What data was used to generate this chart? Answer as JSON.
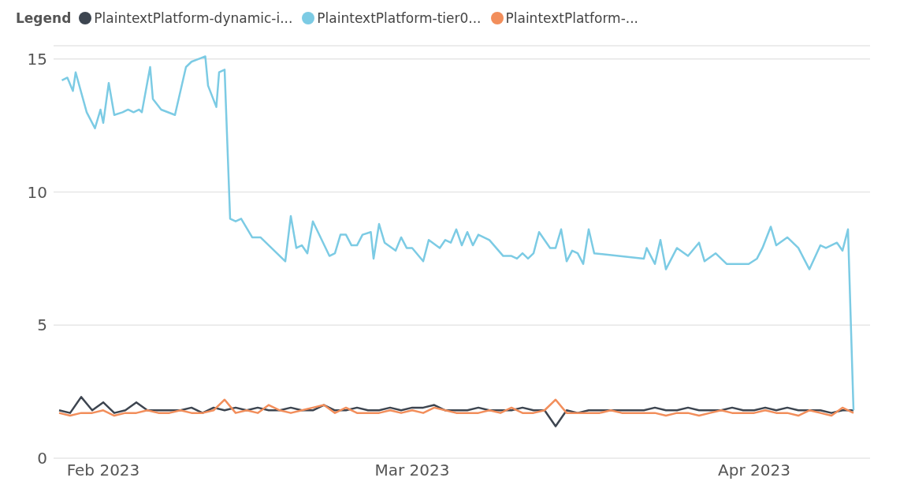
{
  "chart_data": {
    "type": "line",
    "legend_title": "Legend",
    "legend": "top left",
    "grid": "y",
    "marker": "none",
    "line_style": "solid",
    "xlim": [
      "2023-01-27T12:00",
      "2023-04-11T12:00"
    ],
    "xticks": [
      {
        "value": "2023-02-01",
        "label": "Feb 2023"
      },
      {
        "value": "2023-03-01",
        "label": "Mar 2023"
      },
      {
        "value": "2023-04-01",
        "label": "Apr 2023"
      }
    ],
    "ylim": [
      0,
      15.5
    ],
    "yticks": [
      0,
      5,
      10,
      15
    ],
    "x": [
      "2023-01-28",
      "2023-01-29",
      "2023-01-30",
      "2023-01-31",
      "2023-02-01",
      "2023-02-02",
      "2023-02-03",
      "2023-02-04",
      "2023-02-05",
      "2023-02-06",
      "2023-02-07",
      "2023-02-08",
      "2023-02-09",
      "2023-02-10",
      "2023-02-11",
      "2023-02-12",
      "2023-02-13",
      "2023-02-14",
      "2023-02-15",
      "2023-02-16",
      "2023-02-17",
      "2023-02-18",
      "2023-02-19",
      "2023-02-20",
      "2023-02-21",
      "2023-02-22",
      "2023-02-23",
      "2023-02-24",
      "2023-02-25",
      "2023-02-26",
      "2023-02-27",
      "2023-02-28",
      "2023-03-01",
      "2023-03-02",
      "2023-03-03",
      "2023-03-04",
      "2023-03-05",
      "2023-03-06",
      "2023-03-07",
      "2023-03-08",
      "2023-03-09",
      "2023-03-10",
      "2023-03-11",
      "2023-03-12",
      "2023-03-13",
      "2023-03-14",
      "2023-03-15",
      "2023-03-16",
      "2023-03-17",
      "2023-03-18",
      "2023-03-19",
      "2023-03-20",
      "2023-03-21",
      "2023-03-22",
      "2023-03-23",
      "2023-03-24",
      "2023-03-25",
      "2023-03-26",
      "2023-03-27",
      "2023-03-28",
      "2023-03-29",
      "2023-03-30",
      "2023-03-31",
      "2023-04-01",
      "2023-04-02",
      "2023-04-03",
      "2023-04-04",
      "2023-04-05",
      "2023-04-06",
      "2023-04-07",
      "2023-04-08",
      "2023-04-09",
      "2023-04-10"
    ],
    "series": [
      {
        "name": "PlaintextPlatform-dynamic-i...",
        "color": "#3d4550",
        "values": [
          1.8,
          1.7,
          2.3,
          1.8,
          2.1,
          1.7,
          1.8,
          2.1,
          1.8,
          1.8,
          1.8,
          1.8,
          1.9,
          1.7,
          1.9,
          1.8,
          1.9,
          1.8,
          1.9,
          1.8,
          1.8,
          1.9,
          1.8,
          1.8,
          2.0,
          1.8,
          1.8,
          1.9,
          1.8,
          1.8,
          1.9,
          1.8,
          1.9,
          1.9,
          2.0,
          1.8,
          1.8,
          1.8,
          1.9,
          1.8,
          1.8,
          1.8,
          1.9,
          1.8,
          1.8,
          1.2,
          1.8,
          1.7,
          1.8,
          1.8,
          1.8,
          1.8,
          1.8,
          1.8,
          1.9,
          1.8,
          1.8,
          1.9,
          1.8,
          1.8,
          1.8,
          1.9,
          1.8,
          1.8,
          1.9,
          1.8,
          1.9,
          1.8,
          1.8,
          1.8,
          1.7,
          1.8,
          1.8
        ]
      },
      {
        "name": "PlaintextPlatform-tier0...",
        "color": "#7ccbe4",
        "x": [
          "2023-01-28T06:00",
          "2023-01-28T18:00",
          "2023-01-29T06:00",
          "2023-01-29T12:00",
          "2023-01-30T12:00",
          "2023-01-31T06:00",
          "2023-01-31T18:00",
          "2023-02-01T00:00",
          "2023-02-01T12:00",
          "2023-02-02T00:00",
          "2023-02-02T18:00",
          "2023-02-03T06:00",
          "2023-02-03T18:00",
          "2023-02-04T06:00",
          "2023-02-04T12:00",
          "2023-02-05T06:00",
          "2023-02-05T12:00",
          "2023-02-06T06:00",
          "2023-02-07T12:00",
          "2023-02-08T12:00",
          "2023-02-09T00:00",
          "2023-02-10T06:00",
          "2023-02-10T12:00",
          "2023-02-11T06:00",
          "2023-02-11T12:00",
          "2023-02-12T00:00",
          "2023-02-12T12:00",
          "2023-02-13T00:00",
          "2023-02-13T12:00",
          "2023-02-14T12:00",
          "2023-02-15T06:00",
          "2023-02-17T12:00",
          "2023-02-18T00:00",
          "2023-02-18T12:00",
          "2023-02-19T00:00",
          "2023-02-19T12:00",
          "2023-02-20T00:00",
          "2023-02-21T12:00",
          "2023-02-22T00:00",
          "2023-02-22T12:00",
          "2023-02-23T00:00",
          "2023-02-23T12:00",
          "2023-02-24T00:00",
          "2023-02-24T12:00",
          "2023-02-25T06:00",
          "2023-02-25T12:00",
          "2023-02-26T00:00",
          "2023-02-26T12:00",
          "2023-02-27T12:00",
          "2023-02-28T00:00",
          "2023-02-28T12:00",
          "2023-03-01T00:00",
          "2023-03-02T00:00",
          "2023-03-02T12:00",
          "2023-03-03T12:00",
          "2023-03-04T00:00",
          "2023-03-04T12:00",
          "2023-03-05T00:00",
          "2023-03-05T12:00",
          "2023-03-06T00:00",
          "2023-03-06T12:00",
          "2023-03-07T00:00",
          "2023-03-08T00:00",
          "2023-03-09T06:00",
          "2023-03-10T00:00",
          "2023-03-10T12:00",
          "2023-03-11T00:00",
          "2023-03-11T12:00",
          "2023-03-12T00:00",
          "2023-03-12T12:00",
          "2023-03-13T12:00",
          "2023-03-14T00:00",
          "2023-03-14T12:00",
          "2023-03-15T00:00",
          "2023-03-15T12:00",
          "2023-03-16T00:00",
          "2023-03-16T12:00",
          "2023-03-17T00:00",
          "2023-03-17T12:00",
          "2023-03-22T00:00",
          "2023-03-22T06:00",
          "2023-03-23T00:00",
          "2023-03-23T12:00",
          "2023-03-24T00:00",
          "2023-03-25T00:00",
          "2023-03-26T00:00",
          "2023-03-27T00:00",
          "2023-03-27T12:00",
          "2023-03-28T12:00",
          "2023-03-29T12:00",
          "2023-03-31T12:00",
          "2023-04-01T06:00",
          "2023-04-01T18:00",
          "2023-04-02T12:00",
          "2023-04-03T00:00",
          "2023-04-04T00:00",
          "2023-04-05T00:00",
          "2023-04-06T00:00",
          "2023-04-07T00:00",
          "2023-04-07T12:00",
          "2023-04-08T12:00",
          "2023-04-09T00:00",
          "2023-04-09T12:00",
          "2023-04-10T00:00"
        ],
        "values": [
          14.2,
          14.3,
          13.8,
          14.5,
          13.0,
          12.4,
          13.1,
          12.6,
          14.1,
          12.9,
          13.0,
          13.1,
          13.0,
          13.1,
          13.0,
          14.7,
          13.5,
          13.1,
          12.9,
          14.7,
          14.9,
          15.1,
          14.0,
          13.2,
          14.5,
          14.6,
          9.0,
          8.9,
          9.0,
          8.3,
          8.3,
          7.4,
          9.1,
          7.9,
          8.0,
          7.7,
          8.9,
          7.6,
          7.7,
          8.4,
          8.4,
          8.0,
          8.0,
          8.4,
          8.5,
          7.5,
          8.8,
          8.1,
          7.8,
          8.3,
          7.9,
          7.9,
          7.4,
          8.2,
          7.9,
          8.2,
          8.1,
          8.6,
          8.0,
          8.5,
          8.0,
          8.4,
          8.2,
          7.6,
          7.6,
          7.5,
          7.7,
          7.5,
          7.7,
          8.5,
          7.9,
          7.9,
          8.6,
          7.4,
          7.8,
          7.7,
          7.3,
          8.6,
          7.7,
          7.5,
          7.9,
          7.3,
          8.2,
          7.1,
          7.9,
          7.6,
          8.1,
          7.4,
          7.7,
          7.3,
          7.3,
          7.5,
          7.9,
          8.7,
          8.0,
          8.3,
          7.9,
          7.1,
          8.0,
          7.9,
          8.1,
          7.8,
          8.6,
          1.8
        ]
      },
      {
        "name": "PlaintextPlatform-...",
        "color": "#f28e5b",
        "values": [
          1.7,
          1.6,
          1.7,
          1.7,
          1.8,
          1.6,
          1.7,
          1.7,
          1.8,
          1.7,
          1.7,
          1.8,
          1.7,
          1.7,
          1.8,
          2.2,
          1.7,
          1.8,
          1.7,
          2.0,
          1.8,
          1.7,
          1.8,
          1.9,
          2.0,
          1.7,
          1.9,
          1.7,
          1.7,
          1.7,
          1.8,
          1.7,
          1.8,
          1.7,
          1.9,
          1.8,
          1.7,
          1.7,
          1.7,
          1.8,
          1.7,
          1.9,
          1.7,
          1.7,
          1.8,
          2.2,
          1.7,
          1.7,
          1.7,
          1.7,
          1.8,
          1.7,
          1.7,
          1.7,
          1.7,
          1.6,
          1.7,
          1.7,
          1.6,
          1.7,
          1.8,
          1.7,
          1.7,
          1.7,
          1.8,
          1.7,
          1.7,
          1.6,
          1.8,
          1.7,
          1.6,
          1.9,
          1.7
        ]
      }
    ]
  }
}
